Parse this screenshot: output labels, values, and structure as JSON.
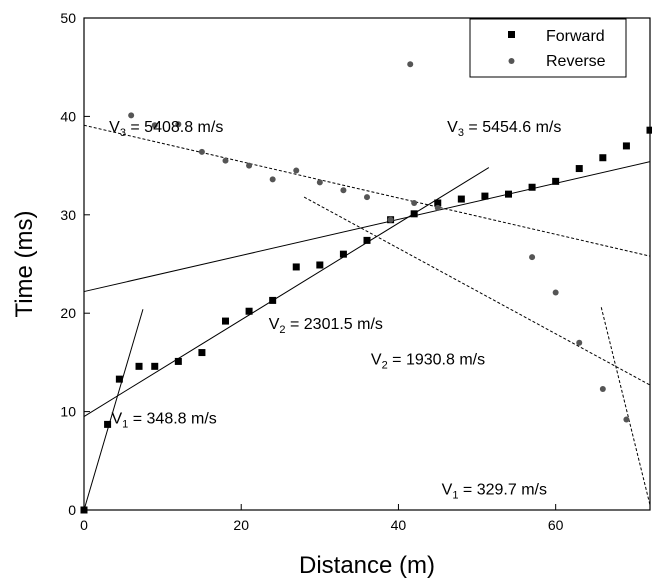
{
  "chart_data": {
    "type": "scatter",
    "xlabel": "Distance (m)",
    "ylabel": "Time (ms)",
    "xlim": [
      0,
      72
    ],
    "ylim": [
      0,
      50
    ],
    "xticks": [
      0,
      20,
      40,
      60
    ],
    "yticks": [
      0,
      10,
      20,
      30,
      40,
      50
    ],
    "grid": false,
    "legend_position": "top-right",
    "series": [
      {
        "name": "Forward",
        "marker": "square",
        "points": [
          [
            0,
            0
          ],
          [
            3,
            8.7
          ],
          [
            4.5,
            13.3
          ],
          [
            7,
            14.6
          ],
          [
            9,
            14.6
          ],
          [
            12,
            15.1
          ],
          [
            15,
            16
          ],
          [
            18,
            19.2
          ],
          [
            21,
            20.2
          ],
          [
            24,
            21.3
          ],
          [
            27,
            24.7
          ],
          [
            30,
            24.9
          ],
          [
            33,
            26
          ],
          [
            36,
            27.4
          ],
          [
            39,
            29.5
          ],
          [
            42,
            30.1
          ],
          [
            45,
            31.2
          ],
          [
            48,
            31.6
          ],
          [
            51,
            31.9
          ],
          [
            54,
            32.1
          ],
          [
            57,
            32.8
          ],
          [
            60,
            33.4
          ],
          [
            63,
            34.7
          ],
          [
            66,
            35.8
          ],
          [
            69,
            37
          ],
          [
            72,
            38.6
          ]
        ]
      },
      {
        "name": "Reverse",
        "marker": "circle",
        "points": [
          [
            6,
            40.1
          ],
          [
            9,
            39.1
          ],
          [
            12,
            39.2
          ],
          [
            15,
            36.4
          ],
          [
            18,
            35.5
          ],
          [
            21,
            35
          ],
          [
            24,
            33.6
          ],
          [
            27,
            34.5
          ],
          [
            30,
            33.3
          ],
          [
            33,
            32.5
          ],
          [
            36,
            31.8
          ],
          [
            39,
            29.5
          ],
          [
            42,
            31.2
          ],
          [
            45,
            30.7
          ],
          [
            41.5,
            45.3
          ],
          [
            57,
            25.7
          ],
          [
            60,
            22.1
          ],
          [
            63,
            17
          ],
          [
            66,
            12.3
          ],
          [
            69,
            9.2
          ]
        ]
      }
    ],
    "fit_lines": [
      {
        "style": "solid",
        "from": [
          0,
          0
        ],
        "to": [
          7.5,
          20.4
        ]
      },
      {
        "style": "solid",
        "from": [
          0,
          9.5
        ],
        "to": [
          51.5,
          34.8
        ]
      },
      {
        "style": "solid",
        "from": [
          0,
          22.2
        ],
        "to": [
          72,
          35.4
        ]
      },
      {
        "style": "dashed",
        "from": [
          0,
          39.1
        ],
        "to": [
          72,
          25.8
        ]
      },
      {
        "style": "dashed",
        "from": [
          28,
          31.8
        ],
        "to": [
          72,
          12.7
        ]
      },
      {
        "style": "dashed",
        "from": [
          65.8,
          20.6
        ],
        "to": [
          72,
          0.5
        ]
      }
    ],
    "annotations": [
      {
        "main": "V",
        "sub": "3",
        "rest": "= 5408.8 m/s",
        "x": 3.2,
        "y": 38.4
      },
      {
        "main": "V",
        "sub": "3",
        "rest": "= 5454.6 m/s",
        "x": 46.2,
        "y": 38.4
      },
      {
        "main": "V",
        "sub": "2",
        "rest": "= 2301.5 m/s",
        "x": 23.5,
        "y": 18.4
      },
      {
        "main": "V",
        "sub": "2",
        "rest": "= 1930.8 m/s",
        "x": 36.5,
        "y": 14.8
      },
      {
        "main": "V",
        "sub": "1",
        "rest": "= 348.8 m/s",
        "x": 3.5,
        "y": 8.8
      },
      {
        "main": "V",
        "sub": "1",
        "rest": "= 329.7 m/s",
        "x": 45.5,
        "y": 1.6
      }
    ]
  }
}
